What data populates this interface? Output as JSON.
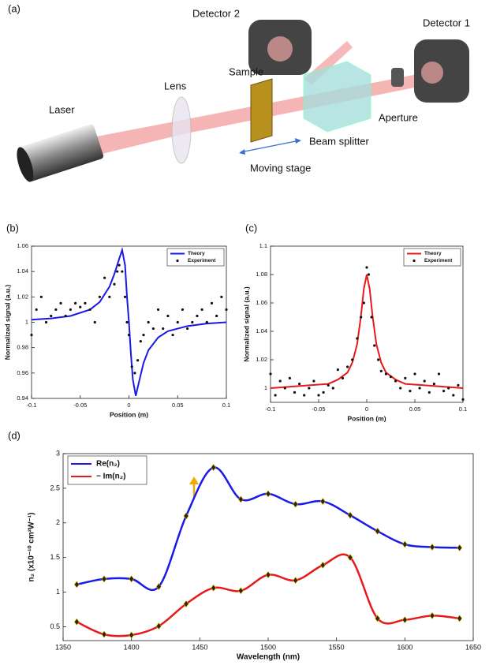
{
  "diagram": {
    "panel_label": "(a)",
    "detector2": "Detector 2",
    "detector1": "Detector 1",
    "lens": "Lens",
    "sample": "Sample",
    "laser": "Laser",
    "aperture": "Aperture",
    "beam_splitter": "Beam splitter",
    "moving_stage": "Moving stage"
  },
  "chart_data": [
    {
      "type": "line",
      "panel_label": "(b)",
      "x_label": "Position (m)",
      "y_label": "Normalized signal (a.u.)",
      "xlim": [
        -0.1,
        0.1
      ],
      "xticks": [
        -0.1,
        -0.05,
        0,
        0.05,
        0.1
      ],
      "ylim": [
        0.94,
        1.06
      ],
      "yticks": [
        0.94,
        0.96,
        0.98,
        1,
        1.02,
        1.04,
        1.06
      ],
      "legend": "upper right",
      "series": [
        {
          "name": "Theory",
          "mode": "line",
          "color": "#1a1ae6",
          "x": [
            -0.1,
            -0.08,
            -0.06,
            -0.04,
            -0.03,
            -0.02,
            -0.015,
            -0.01,
            -0.007,
            -0.004,
            -0.002,
            0,
            0.002,
            0.004,
            0.007,
            0.01,
            0.015,
            0.02,
            0.03,
            0.04,
            0.06,
            0.08,
            0.1
          ],
          "values": [
            1.002,
            1.003,
            1.005,
            1.01,
            1.016,
            1.028,
            1.038,
            1.05,
            1.057,
            1.045,
            1.02,
            1.0,
            0.975,
            0.955,
            0.942,
            0.952,
            0.968,
            0.978,
            0.988,
            0.993,
            0.997,
            0.999,
            1.0
          ]
        },
        {
          "name": "Experiment",
          "mode": "markers",
          "color": "#111111",
          "x": [
            -0.1,
            -0.095,
            -0.09,
            -0.085,
            -0.08,
            -0.075,
            -0.07,
            -0.065,
            -0.06,
            -0.055,
            -0.05,
            -0.045,
            -0.04,
            -0.035,
            -0.03,
            -0.025,
            -0.02,
            -0.015,
            -0.012,
            -0.01,
            -0.007,
            -0.004,
            -0.002,
            0,
            0.003,
            0.006,
            0.009,
            0.012,
            0.015,
            0.02,
            0.025,
            0.03,
            0.035,
            0.04,
            0.045,
            0.05,
            0.055,
            0.06,
            0.065,
            0.07,
            0.075,
            0.08,
            0.085,
            0.09,
            0.095,
            0.1
          ],
          "values": [
            0.99,
            1.01,
            1.02,
            1.0,
            1.005,
            1.01,
            1.015,
            1.005,
            1.01,
            1.015,
            1.012,
            1.015,
            1.01,
            1.0,
            1.02,
            1.035,
            1.02,
            1.03,
            1.04,
            1.045,
            1.04,
            1.02,
            1.0,
            0.99,
            0.965,
            0.96,
            0.97,
            0.985,
            0.99,
            1.0,
            0.995,
            1.01,
            0.995,
            1.005,
            0.99,
            1.0,
            1.01,
            0.995,
            1.0,
            1.005,
            1.01,
            1.0,
            1.015,
            1.005,
            1.02,
            1.01
          ]
        }
      ]
    },
    {
      "type": "line",
      "panel_label": "(c)",
      "x_label": "Position (m)",
      "y_label": "Normalized signal (a.u.)",
      "xlim": [
        -0.1,
        0.1
      ],
      "xticks": [
        -0.1,
        -0.05,
        0,
        0.05,
        0.1
      ],
      "ylim": [
        0.99,
        1.1
      ],
      "yticks": [
        1,
        1.02,
        1.04,
        1.06,
        1.08,
        1.1
      ],
      "legend": "upper right",
      "series": [
        {
          "name": "Theory",
          "mode": "line",
          "color": "#e61a1a",
          "x": [
            -0.1,
            -0.06,
            -0.04,
            -0.03,
            -0.02,
            -0.015,
            -0.01,
            -0.006,
            -0.003,
            0,
            0.003,
            0.006,
            0.01,
            0.015,
            0.02,
            0.03,
            0.04,
            0.06,
            0.1
          ],
          "values": [
            1.0,
            1.002,
            1.003,
            1.006,
            1.011,
            1.018,
            1.031,
            1.051,
            1.07,
            1.08,
            1.07,
            1.051,
            1.031,
            1.018,
            1.011,
            1.006,
            1.003,
            1.002,
            1.0
          ]
        },
        {
          "name": "Experiment",
          "mode": "markers",
          "color": "#111111",
          "x": [
            -0.1,
            -0.095,
            -0.09,
            -0.085,
            -0.08,
            -0.075,
            -0.07,
            -0.065,
            -0.06,
            -0.055,
            -0.05,
            -0.045,
            -0.04,
            -0.035,
            -0.03,
            -0.025,
            -0.02,
            -0.015,
            -0.01,
            -0.006,
            -0.003,
            0,
            0.002,
            0.005,
            0.008,
            0.012,
            0.015,
            0.02,
            0.025,
            0.03,
            0.035,
            0.04,
            0.045,
            0.05,
            0.055,
            0.06,
            0.065,
            0.07,
            0.075,
            0.08,
            0.085,
            0.09,
            0.095,
            0.1
          ],
          "values": [
            1.01,
            0.995,
            1.005,
            1.0,
            1.007,
            0.997,
            1.003,
            0.995,
            1.0,
            1.005,
            0.995,
            0.997,
            1.002,
            1.0,
            1.013,
            1.007,
            1.015,
            1.02,
            1.035,
            1.05,
            1.06,
            1.085,
            1.08,
            1.05,
            1.03,
            1.02,
            1.012,
            1.01,
            1.008,
            1.005,
            1.0,
            1.007,
            0.998,
            1.01,
            1.0,
            1.005,
            0.997,
            1.003,
            1.01,
            0.998,
            1.0,
            0.995,
            1.002,
            0.992
          ]
        }
      ]
    },
    {
      "type": "line",
      "panel_label": "(d)",
      "x_label": "Wavelength (nm)",
      "y_label": "n₂ (x10⁻¹⁰ cm²W⁻¹)",
      "xlim": [
        1350,
        1650
      ],
      "xticks": [
        1350,
        1400,
        1450,
        1500,
        1550,
        1600,
        1650
      ],
      "ylim": [
        0.3,
        3
      ],
      "yticks": [
        0.5,
        1,
        1.5,
        2,
        2.5,
        3
      ],
      "legend": "upper left",
      "marker_color": "#2b2600",
      "smooth": true,
      "x": [
        1360,
        1380,
        1400,
        1420,
        1440,
        1460,
        1480,
        1500,
        1520,
        1540,
        1560,
        1580,
        1600,
        1620,
        1640
      ],
      "series": [
        {
          "name": "Re(n₂)",
          "mode": "line-markers",
          "color": "#1a1ae6",
          "values": [
            1.11,
            1.19,
            1.19,
            1.08,
            2.1,
            2.8,
            2.34,
            2.42,
            2.27,
            2.31,
            2.11,
            1.88,
            1.69,
            1.65,
            1.64
          ]
        },
        {
          "name": "− Im(n₂)",
          "mode": "line-markers",
          "color": "#e61a1a",
          "values": [
            0.57,
            0.39,
            0.38,
            0.51,
            0.83,
            1.06,
            1.02,
            1.25,
            1.17,
            1.39,
            1.5,
            0.62,
            0.6,
            0.66,
            0.62
          ]
        }
      ]
    }
  ]
}
